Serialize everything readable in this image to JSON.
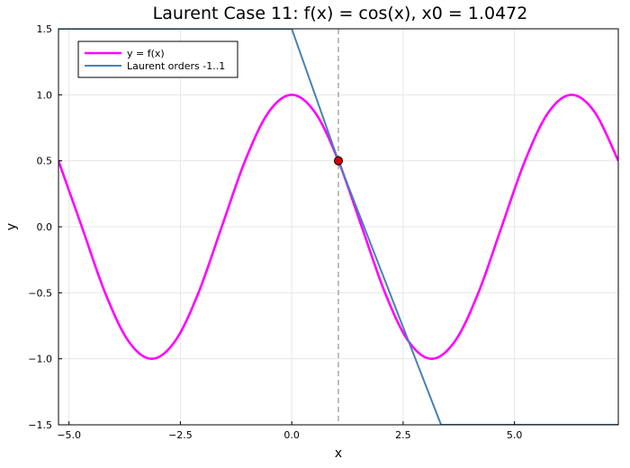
{
  "chart_data": {
    "type": "line",
    "title": "Laurent Case 11: f(x) = cos(x), x0 = 1.0472",
    "xlabel": "x",
    "ylabel": "y",
    "xlim": [
      -5.236,
      7.33
    ],
    "ylim": [
      -1.5,
      1.5
    ],
    "xticks": [
      -5.0,
      -2.5,
      0.0,
      2.5,
      5.0
    ],
    "xtick_labels": [
      "−5.0",
      "−2.5",
      "0.0",
      "2.5",
      "5.0"
    ],
    "yticks": [
      -1.5,
      -1.0,
      -0.5,
      0.0,
      0.5,
      1.0,
      1.5
    ],
    "ytick_labels": [
      "−1.5",
      "−1.0",
      "−0.5",
      "0.0",
      "0.5",
      "1.0",
      "1.5"
    ],
    "grid": true,
    "legend_position": "top-left",
    "x0": 1.0472,
    "point": {
      "x": 1.0472,
      "y": 0.5
    },
    "series": [
      {
        "name": "y = f(x)",
        "color": "#ff00ff",
        "x": [
          -5.236,
          -4.712,
          -4.189,
          -3.665,
          -3.142,
          -2.618,
          -2.094,
          -1.571,
          -1.047,
          -0.524,
          0.0,
          0.524,
          1.047,
          1.571,
          2.094,
          2.618,
          3.142,
          3.665,
          4.189,
          4.712,
          5.236,
          5.76,
          6.283,
          6.807,
          7.33
        ],
        "y": [
          0.5,
          0.0,
          -0.5,
          -0.866,
          -1.0,
          -0.866,
          -0.5,
          0.0,
          0.5,
          0.866,
          1.0,
          0.866,
          0.5,
          0.0,
          -0.5,
          -0.866,
          -1.0,
          -0.866,
          -0.5,
          0.0,
          0.5,
          0.866,
          1.0,
          0.866,
          0.5
        ]
      },
      {
        "name": "Laurent orders -1..1",
        "color": "#4682b4",
        "x": [
          -5.236,
          -0.0,
          1.0472,
          3.352,
          7.33
        ],
        "y": [
          1.5,
          1.5,
          0.5,
          -1.5,
          -1.5
        ]
      }
    ],
    "x0_line_color": "#808080",
    "point_color": "#dd0000"
  }
}
